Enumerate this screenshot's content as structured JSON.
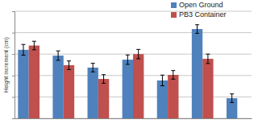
{
  "chart_data": {
    "type": "bar",
    "y_label": "Height increment (cm)",
    "categories": [
      null,
      null,
      null,
      null,
      null,
      null,
      null
    ],
    "series": [
      {
        "name": "Open Ground",
        "color": "#4f81bd",
        "values": [
          3.2,
          2.93,
          2.37,
          2.74,
          1.77,
          4.17,
          0.94
        ],
        "errors": [
          0.25,
          0.22,
          0.2,
          0.22,
          0.25,
          0.2,
          0.2
        ]
      },
      {
        "name": "PB3 Container",
        "color": "#c0504d",
        "values": [
          3.4,
          2.48,
          1.84,
          3.0,
          2.03,
          2.78,
          null
        ],
        "errors": [
          0.2,
          0.2,
          0.2,
          0.22,
          0.2,
          0.22,
          null
        ]
      }
    ],
    "ylim": [
      0,
      5
    ],
    "yticks": [
      0,
      1,
      2,
      3,
      4,
      5
    ],
    "grid": true,
    "legend": "upper right",
    "tick_labels": false
  }
}
